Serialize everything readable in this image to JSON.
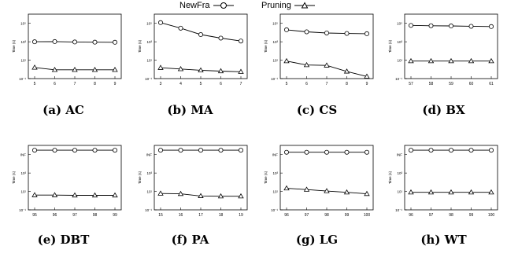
{
  "legend": {
    "items": [
      {
        "name": "NewFra",
        "marker": "circle"
      },
      {
        "name": "Pruning",
        "marker": "triangle"
      }
    ],
    "placement": "top-center"
  },
  "chart_data": [
    {
      "type": "line",
      "caption": "(a) AC",
      "ylabel": "Time (s)",
      "x": [
        5,
        6,
        7,
        8,
        9
      ],
      "xticks": [
        "5",
        "6",
        "7",
        "8",
        "9"
      ],
      "yscale": "log",
      "ylim": [
        0.1,
        1000000
      ],
      "yticks": [
        "10⁻¹",
        "10¹",
        "10³",
        "10⁵"
      ],
      "series": [
        {
          "name": "NewFra",
          "marker": "circle",
          "values": [
            1000,
            1050,
            950,
            900,
            880
          ]
        },
        {
          "name": "Pruning",
          "marker": "triangle",
          "values": [
            1.6,
            0.9,
            0.9,
            0.9,
            0.9
          ]
        }
      ]
    },
    {
      "type": "line",
      "caption": "(b) MA",
      "ylabel": "Time (s)",
      "x": [
        3,
        4,
        5,
        6,
        7
      ],
      "xticks": [
        "3",
        "4",
        "5",
        "6",
        "7"
      ],
      "yscale": "log",
      "ylim": [
        0.1,
        1000000
      ],
      "yticks": [
        "10⁻¹",
        "10¹",
        "10³",
        "10⁵"
      ],
      "series": [
        {
          "name": "NewFra",
          "marker": "circle",
          "values": [
            120000,
            30000,
            6000,
            2500,
            1200
          ]
        },
        {
          "name": "Pruning",
          "marker": "triangle",
          "values": [
            1.5,
            1.1,
            0.8,
            0.65,
            0.55
          ]
        }
      ]
    },
    {
      "type": "line",
      "caption": "(c) CS",
      "ylabel": "Time (s)",
      "x": [
        5,
        6,
        7,
        8,
        9
      ],
      "xticks": [
        "5",
        "6",
        "7",
        "8",
        "9"
      ],
      "yscale": "log",
      "ylim": [
        0.1,
        1000000
      ],
      "yticks": [
        "10⁻¹",
        "10¹",
        "10³",
        "10⁵"
      ],
      "series": [
        {
          "name": "NewFra",
          "marker": "circle",
          "values": [
            20000,
            12000,
            9000,
            8000,
            7500
          ]
        },
        {
          "name": "Pruning",
          "marker": "triangle",
          "values": [
            8,
            3,
            2.7,
            0.6,
            0.17
          ]
        }
      ]
    },
    {
      "type": "line",
      "caption": "(d) BX",
      "ylabel": "Time (s)",
      "x": [
        57,
        58,
        59,
        60,
        61
      ],
      "xticks": [
        "57",
        "58",
        "59",
        "60",
        "61"
      ],
      "yscale": "log",
      "ylim": [
        0.1,
        1000000
      ],
      "yticks": [
        "10⁻¹",
        "10¹",
        "10³",
        "10⁵"
      ],
      "series": [
        {
          "name": "NewFra",
          "marker": "circle",
          "values": [
            60000,
            55000,
            52000,
            48000,
            45000
          ]
        },
        {
          "name": "Pruning",
          "marker": "triangle",
          "values": [
            8,
            8,
            8,
            8,
            8
          ]
        }
      ]
    },
    {
      "type": "line",
      "caption": "(e) DBT",
      "ylabel": "Time (s)",
      "x": [
        95,
        96,
        97,
        98,
        99
      ],
      "xticks": [
        "95",
        "96",
        "97",
        "98",
        "99"
      ],
      "yscale": "log",
      "ylim": [
        0.1,
        1000000
      ],
      "yticks": [
        "10⁻¹",
        "10¹",
        "10³",
        "INF"
      ],
      "series": [
        {
          "name": "NewFra",
          "marker": "circle",
          "values": [
            300000,
            300000,
            300000,
            300000,
            300000
          ]
        },
        {
          "name": "Pruning",
          "marker": "triangle",
          "values": [
            4,
            4,
            3.8,
            3.8,
            3.8
          ]
        }
      ]
    },
    {
      "type": "line",
      "caption": "(f) PA",
      "ylabel": "Time (s)",
      "x": [
        15,
        16,
        17,
        18,
        19
      ],
      "xticks": [
        "15",
        "16",
        "17",
        "18",
        "19"
      ],
      "yscale": "log",
      "ylim": [
        0.1,
        1000000
      ],
      "yticks": [
        "10⁻¹",
        "10¹",
        "10³",
        "INF"
      ],
      "series": [
        {
          "name": "NewFra",
          "marker": "circle",
          "values": [
            300000,
            300000,
            300000,
            300000,
            300000
          ]
        },
        {
          "name": "Pruning",
          "marker": "triangle",
          "values": [
            6,
            5.5,
            3.2,
            3,
            3
          ]
        }
      ]
    },
    {
      "type": "line",
      "caption": "(g) LG",
      "ylabel": "Time (s)",
      "x": [
        96,
        97,
        98,
        99,
        100
      ],
      "xticks": [
        "96",
        "97",
        "98",
        "99",
        "100"
      ],
      "yscale": "log",
      "ylim": [
        0.1,
        1000000
      ],
      "yticks": [
        "10⁻¹",
        "10¹",
        "10³",
        "INF"
      ],
      "series": [
        {
          "name": "NewFra",
          "marker": "circle",
          "values": [
            180000,
            180000,
            180000,
            180000,
            180000
          ]
        },
        {
          "name": "Pruning",
          "marker": "triangle",
          "values": [
            22,
            16,
            11,
            8,
            5.5
          ]
        }
      ]
    },
    {
      "type": "line",
      "caption": "(h) WT",
      "ylabel": "Time (s)",
      "x": [
        96,
        97,
        98,
        99,
        100
      ],
      "xticks": [
        "96",
        "97",
        "98",
        "99",
        "100"
      ],
      "yscale": "log",
      "ylim": [
        0.1,
        1000000
      ],
      "yticks": [
        "10⁻¹",
        "10¹",
        "10³",
        "INF"
      ],
      "series": [
        {
          "name": "NewFra",
          "marker": "circle",
          "values": [
            300000,
            300000,
            300000,
            300000,
            300000
          ]
        },
        {
          "name": "Pruning",
          "marker": "triangle",
          "values": [
            8,
            8,
            8,
            8,
            8
          ]
        }
      ]
    }
  ]
}
